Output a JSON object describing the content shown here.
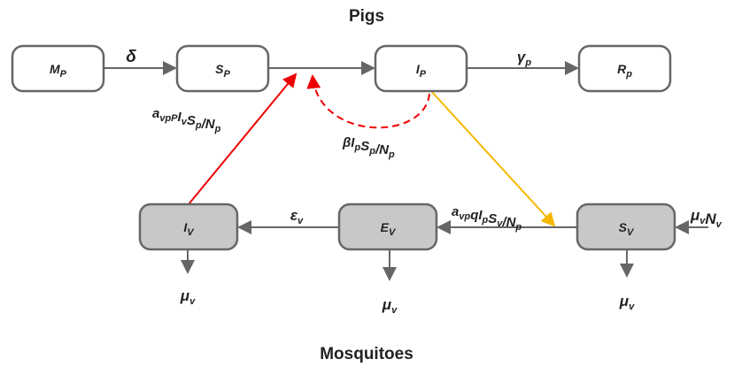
{
  "top_title": "Pigs",
  "bottom_title": "Mosquitoes",
  "nodes": [
    {
      "label": [
        {
          "base": "M",
          "sub": "P"
        }
      ]
    },
    {
      "label": [
        {
          "base": "S",
          "sub": "P"
        }
      ]
    },
    {
      "label": [
        {
          "base": "I",
          "sub": "P"
        }
      ]
    },
    {
      "label": [
        {
          "base": "R",
          "sub": "p"
        }
      ]
    },
    {
      "label": [
        {
          "base": "I",
          "sub": "V"
        }
      ]
    },
    {
      "label": [
        {
          "base": "E",
          "sub": "V"
        }
      ]
    },
    {
      "label": [
        {
          "base": "S",
          "sub": "V"
        }
      ]
    }
  ],
  "rates": [
    {
      "label": [
        {
          "base": "δ"
        }
      ]
    },
    {
      "label": [
        {
          "base": "γ",
          "sub": "p"
        }
      ]
    },
    {
      "label": [
        {
          "base": "a",
          "sub": "vpP"
        },
        {
          "base": "I",
          "sub": "v"
        },
        {
          "base": "S",
          "sub": "p"
        },
        {
          "base": "/N",
          "sub": "p"
        }
      ]
    },
    {
      "label": [
        {
          "base": "βI",
          "sub": "p"
        },
        {
          "base": "S",
          "sub": "p"
        },
        {
          "base": "/N",
          "sub": "p"
        }
      ]
    },
    {
      "label": [
        {
          "base": "a",
          "sub": "vp"
        },
        {
          "base": "qI",
          "sub": "p"
        },
        {
          "base": "S",
          "sub": "v"
        },
        {
          "base": "/N",
          "sub": "p"
        }
      ]
    },
    {
      "label": [
        {
          "base": "ε",
          "sub": "v"
        }
      ]
    },
    {
      "label": [
        {
          "base": "μ",
          "sub": "v"
        },
        {
          "base": "N",
          "sub": "v"
        }
      ]
    },
    {
      "label": [
        {
          "base": "μ",
          "sub": "v"
        }
      ]
    },
    {
      "label": [
        {
          "base": "μ",
          "sub": "v"
        }
      ]
    },
    {
      "label": [
        {
          "base": "μ",
          "sub": "v"
        }
      ]
    }
  ]
}
